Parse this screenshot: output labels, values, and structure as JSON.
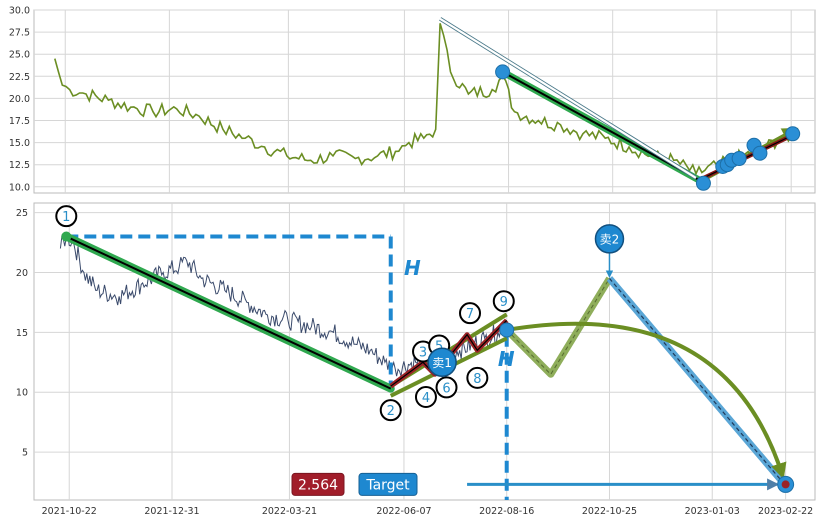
{
  "chart_data": [
    {
      "type": "line",
      "panel": "upper",
      "ylim": [
        9.3,
        30
      ],
      "yticks": [
        10.0,
        12.5,
        15.0,
        17.5,
        20.0,
        22.5,
        25.0,
        27.5,
        30.0
      ],
      "ytick_labels": [
        "10.0",
        "12.5",
        "15.0",
        "17.5",
        "20.0",
        "22.5",
        "25.0",
        "27.5",
        "30.0"
      ],
      "grid": true,
      "x_range": [
        "2021-10-01",
        "2023-03-10"
      ],
      "series": [
        {
          "color": "#6b8e23",
          "points": [
            [
              "2021-10-15",
              24.5
            ],
            [
              "2021-10-20",
              21.5
            ],
            [
              "2021-10-25",
              21.0
            ],
            [
              "2021-11-05",
              20.5
            ],
            [
              "2021-11-20",
              19.8
            ],
            [
              "2021-12-05",
              19.0
            ],
            [
              "2021-12-20",
              18.5
            ],
            [
              "2022-01-05",
              18.8
            ],
            [
              "2022-01-20",
              18.0
            ],
            [
              "2022-02-05",
              16.5
            ],
            [
              "2022-02-20",
              15.5
            ],
            [
              "2022-03-05",
              14.5
            ],
            [
              "2022-03-20",
              13.5
            ],
            [
              "2022-04-05",
              13.0
            ],
            [
              "2022-04-20",
              13.5
            ],
            [
              "2022-05-05",
              13.2
            ],
            [
              "2022-05-20",
              13.5
            ],
            [
              "2022-06-01",
              14.0
            ],
            [
              "2022-06-10",
              15.0
            ],
            [
              "2022-06-20",
              15.5
            ],
            [
              "2022-06-28",
              16.5
            ],
            [
              "2022-07-01",
              28.5
            ],
            [
              "2022-07-08",
              23.0
            ],
            [
              "2022-07-20",
              20.5
            ],
            [
              "2022-08-05",
              21.0
            ],
            [
              "2022-08-12",
              22.5
            ],
            [
              "2022-08-20",
              18.5
            ],
            [
              "2022-09-05",
              17.5
            ],
            [
              "2022-09-20",
              17.0
            ],
            [
              "2022-10-05",
              16.0
            ],
            [
              "2022-10-20",
              15.5
            ],
            [
              "2022-11-05",
              14.5
            ],
            [
              "2022-11-20",
              13.5
            ],
            [
              "2022-12-05",
              13.0
            ],
            [
              "2022-12-20",
              11.5
            ],
            [
              "2023-01-05",
              12.5
            ],
            [
              "2023-01-20",
              13.5
            ],
            [
              "2023-02-05",
              14.5
            ],
            [
              "2023-02-15",
              15.5
            ],
            [
              "2023-02-20",
              16.0
            ]
          ]
        }
      ],
      "annotations": {
        "trend_lines": [
          {
            "from": [
              "2022-08-12",
              23.0
            ],
            "to": [
              "2022-12-25",
              10.5
            ],
            "color": "#2fa84f"
          },
          {
            "from": [
              "2022-07-01",
              29.0
            ],
            "to": [
              "2022-12-20",
              11.0
            ],
            "color": "#ffffff",
            "edge": "#4c7a8a",
            "style": "arrow"
          },
          {
            "from": [
              "2022-12-25",
              10.8
            ],
            "to": [
              "2023-02-25",
              16.5
            ],
            "color": "#6b8e23"
          },
          {
            "from": [
              "2022-12-25",
              11.0
            ],
            "to": [
              "2023-02-25",
              16.0
            ],
            "color": "#8b1a1a"
          }
        ],
        "markers": [
          [
            "2022-08-12",
            23.0
          ],
          [
            "2022-12-25",
            10.4
          ],
          [
            "2023-01-07",
            12.3
          ],
          [
            "2023-01-10",
            12.5
          ],
          [
            "2023-01-13",
            13.0
          ],
          [
            "2023-01-18",
            13.2
          ],
          [
            "2023-01-28",
            14.7
          ],
          [
            "2023-02-01",
            13.8
          ],
          [
            "2023-02-23",
            16.0
          ]
        ]
      }
    },
    {
      "type": "line",
      "panel": "lower",
      "ylim": [
        1,
        25.8
      ],
      "yticks": [
        5,
        10,
        15,
        20,
        25
      ],
      "ytick_labels": [
        "5",
        "10",
        "15",
        "20",
        "25"
      ],
      "xticks": [
        "2021-10-22",
        "2021-12-31",
        "2022-03-21",
        "2022-06-07",
        "2022-08-16",
        "2022-10-25",
        "2023-01-03",
        "2023-02-22"
      ],
      "xtick_labels": [
        "2021-10-22",
        "2021-12-31",
        "2022-03-21",
        "2022-06-07",
        "2022-08-16",
        "2022-10-25",
        "2023-01-03",
        "2023-02-22"
      ],
      "grid": true,
      "x_range": [
        "2021-09-28",
        "2023-03-14"
      ],
      "price_series": {
        "color": "#3a4a6b",
        "points": [
          [
            "2021-10-16",
            22.0
          ],
          [
            "2021-10-20",
            23.0
          ],
          [
            "2021-10-25",
            22.5
          ],
          [
            "2021-11-01",
            20.0
          ],
          [
            "2021-11-10",
            18.5
          ],
          [
            "2021-11-25",
            18.0
          ],
          [
            "2021-12-10",
            19.0
          ],
          [
            "2021-12-25",
            20.0
          ],
          [
            "2022-01-05",
            20.5
          ],
          [
            "2022-01-10",
            21.0
          ],
          [
            "2022-01-20",
            19.5
          ],
          [
            "2022-02-05",
            18.5
          ],
          [
            "2022-02-20",
            17.5
          ],
          [
            "2022-03-05",
            16.5
          ],
          [
            "2022-03-20",
            16.0
          ],
          [
            "2022-04-05",
            15.5
          ],
          [
            "2022-04-20",
            15.0
          ],
          [
            "2022-05-05",
            14.0
          ],
          [
            "2022-05-15",
            13.5
          ],
          [
            "2022-05-25",
            12.5
          ],
          [
            "2022-06-01",
            12.0
          ],
          [
            "2022-06-15",
            12.5
          ],
          [
            "2022-07-01",
            13.0
          ],
          [
            "2022-07-15",
            13.5
          ],
          [
            "2022-08-01",
            14.5
          ],
          [
            "2022-08-10",
            15.0
          ],
          [
            "2022-08-16",
            15.5
          ]
        ]
      },
      "dashed_reference": [
        {
          "from": [
            "2021-10-20",
            23.0
          ],
          "to": [
            "2022-05-29",
            23.0
          ]
        },
        {
          "from": [
            "2022-05-29",
            23.0
          ],
          "to": [
            "2022-05-29",
            10.0
          ]
        },
        {
          "from": [
            "2022-08-16",
            14.8
          ],
          "to": [
            "2022-08-16",
            1.0
          ]
        }
      ],
      "legs": {
        "main_down": {
          "from": [
            "2021-10-20",
            23.0
          ],
          "to": [
            "2022-05-29",
            10.3
          ]
        },
        "rise": [
          [
            "2022-05-29",
            10.5
          ],
          [
            "2022-06-20",
            12.5
          ],
          [
            "2022-06-28",
            11.5
          ],
          [
            "2022-07-20",
            14.8
          ],
          [
            "2022-07-27",
            13.5
          ],
          [
            "2022-08-16",
            16.0
          ]
        ],
        "projection_zigzag": [
          [
            "2022-08-16",
            15.2
          ],
          [
            "2022-09-15",
            11.5
          ],
          [
            "2022-10-25",
            19.5
          ]
        ],
        "sell2_down": {
          "from": [
            "2022-10-25",
            19.5
          ],
          "to": [
            "2023-02-22",
            2.2
          ]
        },
        "arc": {
          "from": [
            "2022-08-16",
            15.2
          ],
          "peak": [
            "2022-10-01",
            16.2
          ],
          "to": [
            "2023-02-20",
            3.0
          ]
        }
      },
      "numbered_markers": [
        {
          "label": "1",
          "at": [
            "2021-10-20",
            24.7
          ]
        },
        {
          "label": "2",
          "at": [
            "2022-05-29",
            8.5
          ]
        },
        {
          "label": "3",
          "at": [
            "2022-06-20",
            13.4
          ]
        },
        {
          "label": "4",
          "at": [
            "2022-06-22",
            9.6
          ]
        },
        {
          "label": "5",
          "at": [
            "2022-07-01",
            13.9
          ]
        },
        {
          "label": "6",
          "at": [
            "2022-07-06",
            10.4
          ]
        },
        {
          "label": "7",
          "at": [
            "2022-07-22",
            16.6
          ]
        },
        {
          "label": "8",
          "at": [
            "2022-07-27",
            11.2
          ]
        },
        {
          "label": "9",
          "at": [
            "2022-08-14",
            17.6
          ]
        }
      ],
      "callouts": [
        {
          "label": "卖1",
          "at": [
            "2022-07-03",
            12.5
          ]
        },
        {
          "label": "卖2",
          "at": [
            "2022-10-25",
            22.8
          ]
        }
      ],
      "h_labels": [
        {
          "label": "H",
          "at": [
            "2022-06-07",
            19.8
          ]
        },
        {
          "label": "H",
          "at": [
            "2022-08-10",
            12.2
          ]
        }
      ],
      "target_row": {
        "value_label": "2.564",
        "target_label": "Target",
        "y": 2.3,
        "arrow_from": "2022-07-20",
        "arrow_to": "2023-02-20",
        "endpoint": [
          "2023-02-22",
          2.3
        ]
      }
    }
  ]
}
